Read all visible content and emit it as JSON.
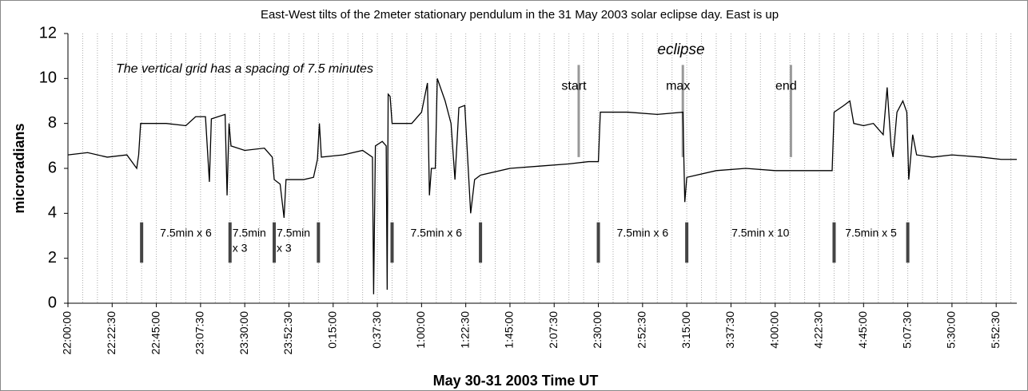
{
  "chart_data": {
    "type": "line",
    "title": "East-West  tilts of the 2meter stationary pendulum in the 31 May 2003 solar eclipse day. East  is up",
    "xlabel": "May 30-31 2003 Time UT",
    "ylabel": "microradians",
    "note": "The vertical grid has a spacing of 7.5 minutes",
    "eclipse_label": "eclipse",
    "color": "#000000",
    "x": [
      "22:00:00",
      "22:10:00",
      "22:20:00",
      "22:30:00",
      "22:35:00",
      "22:36:00",
      "22:37:00",
      "22:50:00",
      "23:00:00",
      "23:05:00",
      "23:10:00",
      "23:12:00",
      "23:13:00",
      "23:20:00",
      "23:21:00",
      "23:22:00",
      "23:23:00",
      "23:30:00",
      "23:40:00",
      "23:44:00",
      "23:45:00",
      "23:48:00",
      "23:50:00",
      "23:51:00",
      "0:00:00",
      "0:05:00",
      "0:07:00",
      "0:08:00",
      "0:09:00",
      "0:20:00",
      "0:30:00",
      "0:35:00",
      "0:35:36",
      "0:36:30",
      "0:40:00",
      "0:42:00",
      "0:42:30",
      "0:43:00",
      "0:44:00",
      "0:45:00",
      "0:55:00",
      "1:00:00",
      "1:03:00",
      "1:04:00",
      "1:05:00",
      "1:07:00",
      "1:08:00",
      "1:12:00",
      "1:15:00",
      "1:17:00",
      "1:19:00",
      "1:22:00",
      "1:25:00",
      "1:27:00",
      "1:30:00",
      "1:45:00",
      "2:00:00",
      "2:15:00",
      "2:25:00",
      "2:30:00",
      "2:31:00",
      "2:45:00",
      "3:00:00",
      "3:13:00",
      "3:14:00",
      "3:15:00",
      "3:30:00",
      "3:45:00",
      "4:00:00",
      "4:15:00",
      "4:29:00",
      "4:30:00",
      "4:35:00",
      "4:38:00",
      "4:40:00",
      "4:45:00",
      "4:50:00",
      "4:55:00",
      "4:57:00",
      "4:59:00",
      "5:00:00",
      "5:02:00",
      "5:05:00",
      "5:07:00",
      "5:08:00",
      "5:10:00",
      "5:12:00",
      "5:20:00",
      "5:30:00",
      "5:45:00",
      "5:55:00",
      "6:03:00"
    ],
    "values": [
      6.6,
      6.7,
      6.5,
      6.6,
      6.0,
      6.6,
      8.0,
      8.0,
      7.9,
      8.3,
      8.3,
      5.4,
      8.2,
      8.4,
      4.8,
      8.0,
      7.0,
      6.8,
      6.9,
      6.5,
      5.5,
      5.3,
      3.8,
      5.5,
      5.5,
      5.6,
      6.4,
      8.0,
      6.5,
      6.6,
      6.8,
      6.5,
      0.4,
      7.0,
      7.2,
      7.0,
      0.6,
      9.3,
      9.2,
      8.0,
      8.0,
      8.5,
      9.8,
      4.8,
      6.0,
      6.0,
      10.0,
      9.0,
      8.0,
      5.5,
      8.7,
      8.8,
      4.0,
      5.5,
      5.7,
      6.0,
      6.1,
      6.2,
      6.3,
      6.3,
      8.5,
      8.5,
      8.4,
      8.5,
      4.5,
      5.6,
      5.9,
      6.0,
      5.9,
      5.9,
      5.9,
      8.5,
      8.8,
      9.0,
      8.0,
      7.9,
      8.0,
      7.5,
      9.6,
      7.0,
      6.5,
      8.5,
      9.0,
      8.5,
      5.5,
      7.5,
      6.6,
      6.5,
      6.6,
      6.5,
      6.4,
      6.4
    ],
    "xlim": [
      "22:00:00",
      "6:03:00"
    ],
    "xticks": [
      "22:00:00",
      "22:22:30",
      "22:45:00",
      "23:07:30",
      "23:30:00",
      "23:52:30",
      "0:15:00",
      "0:37:30",
      "1:00:00",
      "1:22:30",
      "1:45:00",
      "2:07:30",
      "2:30:00",
      "2:52:30",
      "3:15:00",
      "3:37:30",
      "4:00:00",
      "4:22:30",
      "4:45:00",
      "5:07:30",
      "5:30:00",
      "5:52:30"
    ],
    "xgrid_step": "0:07:30",
    "ylim": [
      0,
      12
    ],
    "yticks": [
      0,
      2,
      4,
      6,
      8,
      10,
      12
    ],
    "grid": true,
    "eclipse_markers": [
      {
        "label": "start",
        "x": "2:20:00",
        "y_range": [
          6.5,
          10.6
        ]
      },
      {
        "label": "max",
        "x": "3:13:00",
        "y_range": [
          6.5,
          10.6
        ]
      },
      {
        "label": "end",
        "x": "4:08:00",
        "y_range": [
          6.5,
          10.6
        ]
      }
    ],
    "interval_markers": [
      "22:37:30",
      "23:22:30",
      "23:45:00",
      "0:07:30",
      "0:45:00",
      "1:30:00",
      "2:30:00",
      "3:15:00",
      "4:30:00",
      "5:07:30"
    ],
    "interval_marker_range": [
      1.8,
      3.6
    ],
    "intervals": [
      {
        "from": "22:37:30",
        "to": "23:22:30",
        "label": [
          "7.5min x 6"
        ]
      },
      {
        "from": "23:22:30",
        "to": "23:45:00",
        "label": [
          "7.5min",
          "x 3"
        ]
      },
      {
        "from": "23:45:00",
        "to": "0:07:30",
        "label": [
          "7.5min",
          "x 3"
        ]
      },
      {
        "from": "0:45:00",
        "to": "1:30:00",
        "label": [
          "7.5min x 6"
        ]
      },
      {
        "from": "2:30:00",
        "to": "3:15:00",
        "label": [
          "7.5min x 6"
        ]
      },
      {
        "from": "3:15:00",
        "to": "4:30:00",
        "label": [
          "7.5min x 10"
        ]
      },
      {
        "from": "4:30:00",
        "to": "5:07:30",
        "label": [
          "7.5min x 5"
        ]
      }
    ]
  }
}
